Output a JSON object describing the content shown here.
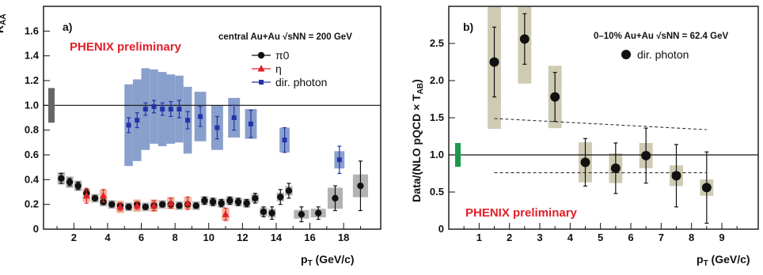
{
  "chart_data": [
    {
      "type": "scatter",
      "panel_label": "a)",
      "ylabel": "RAA",
      "xlabel": "pT (GeV/c)",
      "xlim": [
        0.2,
        20.2
      ],
      "ylim": [
        0,
        1.8
      ],
      "x_ticks": [
        2,
        4,
        6,
        8,
        10,
        12,
        14,
        16,
        18
      ],
      "y_ticks": [
        "0",
        "0.2",
        "0.4",
        "0.6",
        "0.8",
        "1.0",
        "1.2",
        "1.4",
        "1.6"
      ],
      "annotation": "PHENIX preliminary",
      "condition": "central Au+Au √sNN = 200 GeV",
      "reference_line": 1.0,
      "legend_position": "top-right",
      "colors": {
        "pi0": "#111111",
        "eta": "#e0202a",
        "photon": "#2233aa",
        "photon_band": "#8aa0cc",
        "pi0_band": "#999999",
        "eta_band": "#f0b49a",
        "norm_box": "#666666"
      },
      "series": [
        {
          "name": "π0",
          "marker": "circle",
          "x": [
            1.25,
            1.75,
            2.25,
            2.75,
            3.25,
            3.75,
            4.25,
            4.75,
            5.25,
            5.75,
            6.25,
            6.75,
            7.25,
            7.75,
            8.25,
            8.75,
            9.25,
            9.75,
            10.25,
            10.75,
            11.25,
            11.75,
            12.25,
            12.75,
            13.25,
            13.75,
            14.25,
            14.75,
            15.5,
            16.5,
            17.5,
            19.0
          ],
          "y": [
            0.41,
            0.38,
            0.35,
            0.29,
            0.25,
            0.22,
            0.2,
            0.19,
            0.18,
            0.2,
            0.18,
            0.19,
            0.2,
            0.2,
            0.19,
            0.2,
            0.19,
            0.23,
            0.22,
            0.21,
            0.23,
            0.22,
            0.21,
            0.25,
            0.14,
            0.13,
            0.26,
            0.31,
            0.12,
            0.13,
            0.25,
            0.35
          ],
          "err": [
            0.04,
            0.03,
            0.03,
            0.03,
            0.02,
            0.02,
            0.02,
            0.02,
            0.02,
            0.02,
            0.02,
            0.02,
            0.02,
            0.02,
            0.02,
            0.02,
            0.02,
            0.03,
            0.03,
            0.03,
            0.03,
            0.03,
            0.03,
            0.04,
            0.04,
            0.05,
            0.06,
            0.06,
            0.06,
            0.05,
            0.1,
            0.2
          ]
        },
        {
          "name": "η",
          "marker": "triangle",
          "x": [
            2.75,
            3.75,
            4.75,
            5.75,
            6.75,
            7.75,
            8.75,
            11.0
          ],
          "y": [
            0.27,
            0.27,
            0.18,
            0.19,
            0.19,
            0.21,
            0.21,
            0.12
          ],
          "err": [
            0.06,
            0.05,
            0.03,
            0.03,
            0.04,
            0.04,
            0.05,
            0.05
          ]
        },
        {
          "name": "dir. photon",
          "marker": "square",
          "x": [
            5.25,
            5.75,
            6.25,
            6.75,
            7.25,
            7.75,
            8.25,
            8.75,
            9.5,
            10.5,
            11.5,
            12.5,
            14.5,
            17.75
          ],
          "y": [
            0.84,
            0.88,
            0.97,
            0.99,
            0.97,
            0.97,
            0.97,
            0.88,
            0.91,
            0.82,
            0.9,
            0.85,
            0.72,
            0.56
          ],
          "err": [
            0.06,
            0.06,
            0.05,
            0.05,
            0.05,
            0.06,
            0.07,
            0.07,
            0.08,
            0.09,
            0.1,
            0.11,
            0.1,
            0.11
          ]
        }
      ]
    },
    {
      "type": "scatter",
      "panel_label": "b)",
      "ylabel": "Data/(NLO pQCD × TAB)",
      "xlabel": "pT (GeV/c)",
      "xlim": [
        0,
        10.2
      ],
      "ylim": [
        0,
        3.0
      ],
      "x_ticks": [
        1,
        2,
        3,
        4,
        5,
        6,
        7,
        8,
        9
      ],
      "y_ticks": [
        "0",
        "0.5",
        "1.0",
        "1.5",
        "2.0",
        "2.5"
      ],
      "annotation": "PHENIX preliminary",
      "condition": "0–10% Au+Au √sNN = 62.4 GeV",
      "reference_line": 1.0,
      "legend_position": "top-right",
      "colors": {
        "points": "#111111",
        "sys_box": "#cfcbb3",
        "norm_box": "#1a9a4a",
        "dashed": "#333333"
      },
      "series": [
        {
          "name": "dir. photon",
          "marker": "circle",
          "x": [
            1.5,
            2.5,
            3.5,
            4.5,
            5.5,
            6.5,
            7.5,
            8.5
          ],
          "y": [
            2.25,
            2.56,
            1.78,
            0.9,
            0.82,
            0.99,
            0.72,
            0.56
          ],
          "err": [
            0.47,
            0.34,
            0.33,
            0.32,
            0.34,
            0.37,
            0.42,
            0.48
          ],
          "sys": [
            0.9,
            0.6,
            0.42,
            0.27,
            0.2,
            0.17,
            0.14,
            0.11
          ]
        }
      ],
      "dashed_curves": [
        {
          "x": [
            1.5,
            8.5
          ],
          "y": [
            1.49,
            1.34
          ]
        },
        {
          "x": [
            1.5,
            8.5
          ],
          "y": [
            0.76,
            0.76
          ]
        }
      ]
    }
  ]
}
